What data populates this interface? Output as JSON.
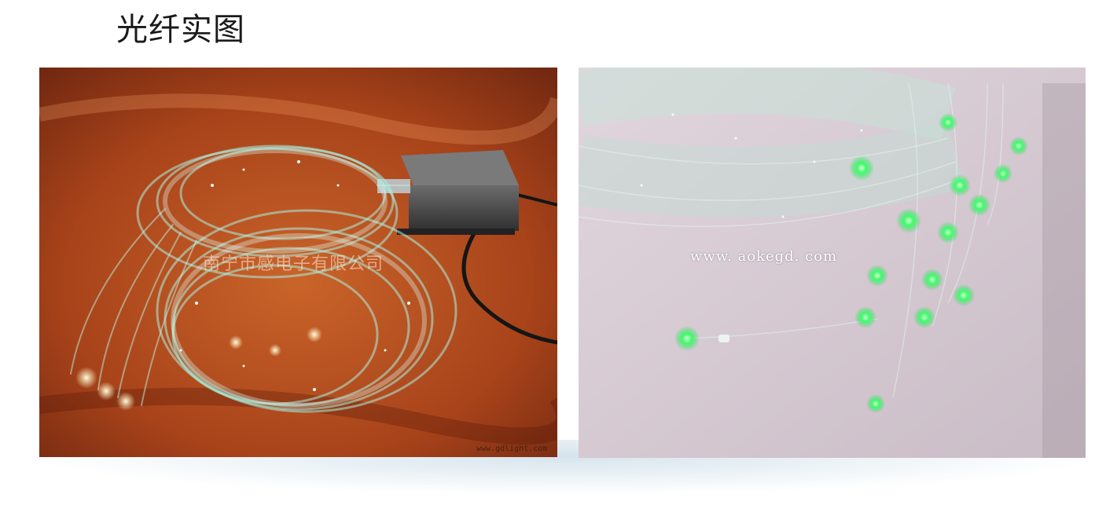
{
  "title": "光纤实图",
  "photos": {
    "left": {
      "watermark_cn": "南宁市感电子有限公司",
      "watermark_url": "www.gdlight.com"
    },
    "right": {
      "watermark_url": "www. aokegd. com"
    }
  },
  "colors": {
    "background": "#ffffff",
    "left_backdrop": "#b54a1a",
    "fiber_glow": "#9fe8d8",
    "green_tip": "#3dff6a",
    "right_wall": "#d8cdd6"
  }
}
